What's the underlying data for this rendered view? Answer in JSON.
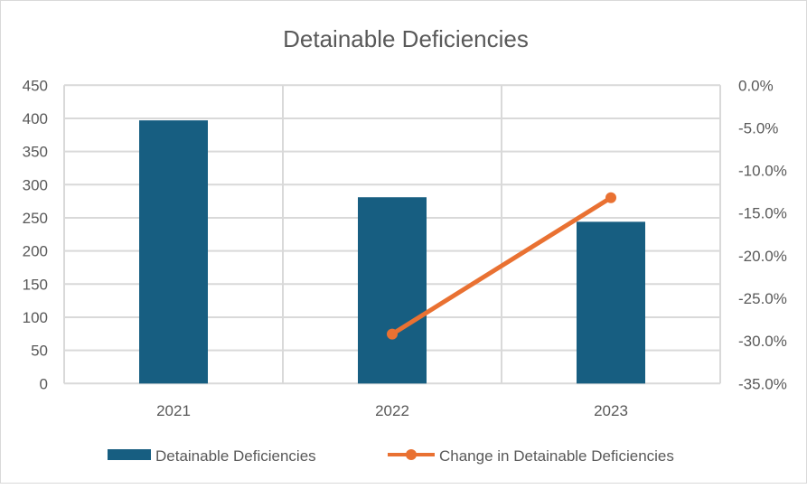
{
  "chart_data": {
    "type": "bar",
    "title": "Detainable Deficiencies",
    "categories": [
      "2021",
      "2022",
      "2023"
    ],
    "series": [
      {
        "name": "Detainable Deficiencies",
        "type": "bar",
        "axis": "left",
        "color": "#175e81",
        "values": [
          397,
          281,
          244
        ]
      },
      {
        "name": "Change in Detainable Deficiencies",
        "type": "line",
        "axis": "right",
        "color": "#e97132",
        "values": [
          null,
          -29.2,
          -13.2
        ]
      }
    ],
    "y_left": {
      "min": 0,
      "max": 450,
      "step": 50,
      "ticks": [
        "0",
        "50",
        "100",
        "150",
        "200",
        "250",
        "300",
        "350",
        "400",
        "450"
      ]
    },
    "y_right": {
      "min": -35,
      "max": 0,
      "step": 5,
      "ticks": [
        "-35.0%",
        "-30.0%",
        "-25.0%",
        "-20.0%",
        "-15.0%",
        "-10.0%",
        "-5.0%",
        "0.0%"
      ]
    },
    "grid": true,
    "legend": "bottom"
  }
}
